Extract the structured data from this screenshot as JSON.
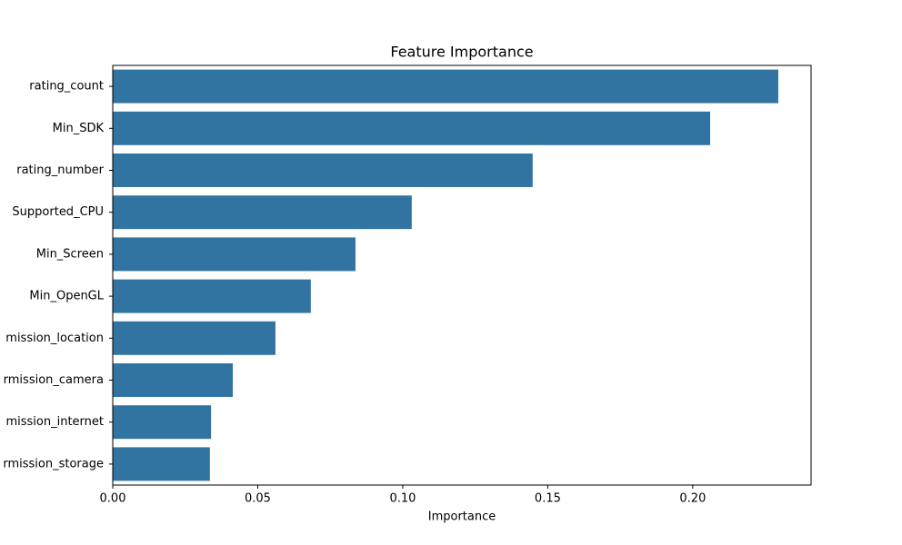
{
  "chart_data": {
    "type": "barh",
    "title": "Feature Importance",
    "x_label": "Importance",
    "categories": [
      "rating_count",
      "Min_SDK",
      "rating_number",
      "Supported_CPU",
      "Min_Screen",
      "Min_OpenGL",
      "mission_location",
      "rmission_camera",
      "mission_internet",
      "rmission_storage"
    ],
    "values": [
      0.2295,
      0.206,
      0.1448,
      0.1031,
      0.0837,
      0.0683,
      0.0561,
      0.0414,
      0.0339,
      0.0335
    ],
    "color": "#3274a1",
    "xlim": [
      0,
      0.2408
    ],
    "xticks": [
      {
        "value": 0,
        "label": "0.00"
      },
      0.05,
      {
        "value": 0.1,
        "label": "0.10"
      },
      0.15,
      {
        "value": 0.2,
        "label": "0.20"
      }
    ],
    "grid": false
  }
}
